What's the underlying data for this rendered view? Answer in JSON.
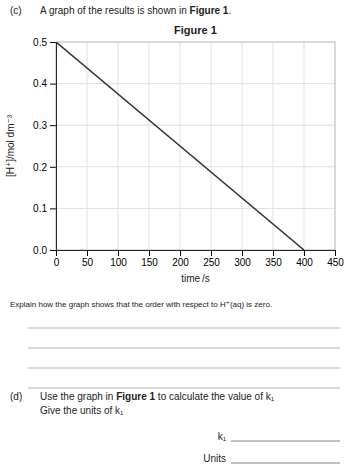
{
  "chart_data": {
    "type": "line",
    "title": "Figure 1",
    "xlabel": "time /s",
    "ylabel": "[H⁺]/mol dm⁻³",
    "x": [
      0,
      400
    ],
    "values": [
      0.5,
      0.0
    ],
    "color": "#333333",
    "xlim": [
      0,
      450
    ],
    "ylim": [
      0.0,
      0.5
    ],
    "xticks": [
      0,
      50,
      100,
      150,
      200,
      250,
      300,
      350,
      400,
      450
    ],
    "yticks": [
      {
        "value": 0.0,
        "label": "0.0"
      },
      {
        "value": 0.1,
        "label": "0.1"
      },
      {
        "value": 0.2,
        "label": "0.2"
      },
      {
        "value": 0.3,
        "label": "0.3"
      },
      {
        "value": 0.4,
        "label": "0.4"
      },
      {
        "value": 0.5,
        "label": "0.5"
      }
    ],
    "grid": true,
    "annotations": [
      [
        "(c)",
        "A graph of the results is shown in ",
        "Figure 1",
        "."
      ],
      [
        "Explain how the graph shows that the order with respect to H⁺(aq) is zero."
      ],
      [
        "(d)",
        "Use the graph in ",
        "Figure 1",
        " to calculate the value of k₁"
      ],
      [
        "Give the units of k₁"
      ],
      [
        "k₁"
      ],
      [
        "Units"
      ]
    ]
  }
}
